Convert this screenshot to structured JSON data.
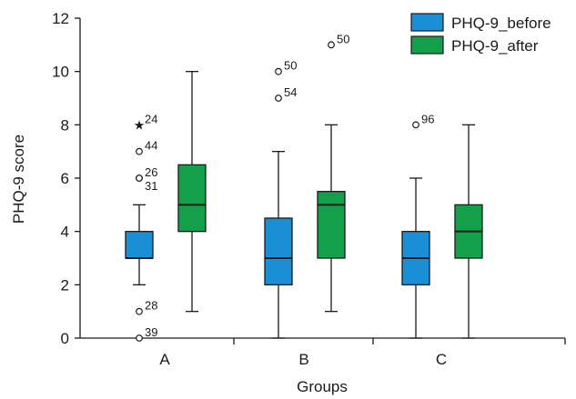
{
  "chart_data": {
    "type": "box",
    "title": "",
    "xlabel": "Groups",
    "ylabel": "PHQ-9 score",
    "ylim": [
      0,
      12
    ],
    "yticks": [
      0,
      2,
      4,
      6,
      8,
      10,
      12
    ],
    "categories": [
      "A",
      "B",
      "C"
    ],
    "legend_position": "top-right",
    "grid": false,
    "series": [
      {
        "name": "PHQ-9_before",
        "color": "#1a8fd6",
        "boxes": [
          {
            "category": "A",
            "min": 2,
            "q1": 3,
            "median": 3,
            "q3": 4,
            "max": 5,
            "outliers": [
              {
                "value": 8,
                "label": "24",
                "marker": "star"
              },
              {
                "value": 7,
                "label": "44",
                "marker": "circle"
              },
              {
                "value": 6,
                "label": "26",
                "marker": "circle"
              },
              {
                "value": 6,
                "label": "31",
                "marker": "circle"
              },
              {
                "value": 1,
                "label": "28",
                "marker": "circle"
              },
              {
                "value": 0,
                "label": "39",
                "marker": "circle"
              }
            ]
          },
          {
            "category": "B",
            "min": 0,
            "q1": 2,
            "median": 3,
            "q3": 4.5,
            "max": 7,
            "outliers": [
              {
                "value": 10,
                "label": "50",
                "marker": "circle"
              },
              {
                "value": 9,
                "label": "54",
                "marker": "circle"
              }
            ]
          },
          {
            "category": "C",
            "min": 0,
            "q1": 2,
            "median": 3,
            "q3": 4,
            "max": 6,
            "outliers": [
              {
                "value": 8,
                "label": "96",
                "marker": "circle"
              }
            ]
          }
        ]
      },
      {
        "name": "PHQ-9_after",
        "color": "#14a04a",
        "boxes": [
          {
            "category": "A",
            "min": 1,
            "q1": 4,
            "median": 5,
            "q3": 6.5,
            "max": 10,
            "outliers": []
          },
          {
            "category": "B",
            "min": 1,
            "q1": 3,
            "median": 5,
            "q3": 5.5,
            "max": 8,
            "outliers": [
              {
                "value": 11,
                "label": "50",
                "marker": "circle"
              }
            ]
          },
          {
            "category": "C",
            "min": 0,
            "q1": 3,
            "median": 4,
            "q3": 5,
            "max": 8,
            "outliers": []
          }
        ]
      }
    ]
  }
}
